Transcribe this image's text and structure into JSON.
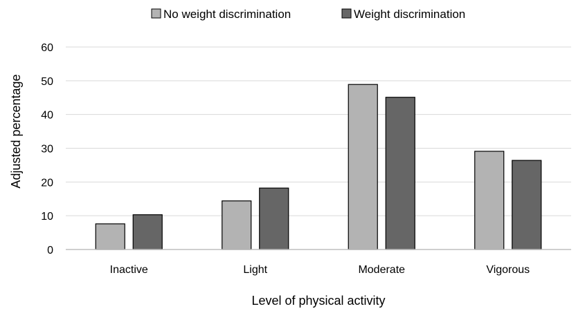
{
  "chart_data": {
    "type": "bar",
    "categories": [
      "Inactive",
      "Light",
      "Moderate",
      "Vigorous"
    ],
    "series": [
      {
        "name": "No weight discrimination",
        "values": [
          7.6,
          14.4,
          48.9,
          29.1
        ],
        "color": "#b3b3b3"
      },
      {
        "name": "Weight discrimination",
        "values": [
          10.3,
          18.2,
          45.1,
          26.4
        ],
        "color": "#666666"
      }
    ],
    "title": "",
    "xlabel": "Level of physical activity",
    "ylabel": "Adjusted percentage",
    "ylim": [
      0,
      60
    ],
    "yticks": [
      0,
      10,
      20,
      30,
      40,
      50,
      60
    ],
    "grid": true,
    "legend_position": "top-center"
  }
}
